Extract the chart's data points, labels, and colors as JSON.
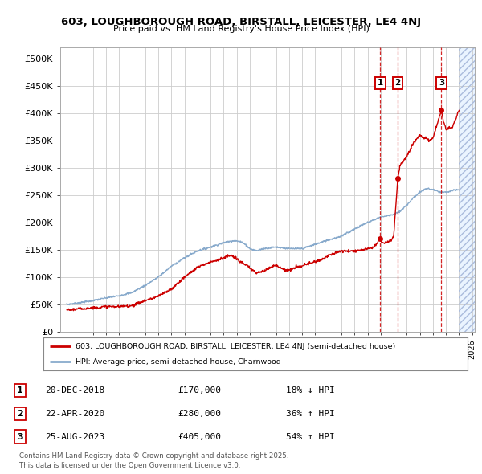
{
  "title": "603, LOUGHBOROUGH ROAD, BIRSTALL, LEICESTER, LE4 4NJ",
  "subtitle": "Price paid vs. HM Land Registry's House Price Index (HPI)",
  "ylim": [
    0,
    520000
  ],
  "yticks": [
    0,
    50000,
    100000,
    150000,
    200000,
    250000,
    300000,
    350000,
    400000,
    450000,
    500000
  ],
  "ytick_labels": [
    "£0",
    "£50K",
    "£100K",
    "£150K",
    "£200K",
    "£250K",
    "£300K",
    "£350K",
    "£400K",
    "£450K",
    "£500K"
  ],
  "xlim": [
    1994.5,
    2026.2
  ],
  "hatch_start": 2025.0,
  "sale_dates_decimal": [
    2018.97,
    2020.31,
    2023.65
  ],
  "sale_prices": [
    170000,
    280000,
    405000
  ],
  "sale_labels": [
    "1",
    "2",
    "3"
  ],
  "sale_info": [
    {
      "num": "1",
      "date": "20-DEC-2018",
      "price": "£170,000",
      "pct": "18% ↓ HPI"
    },
    {
      "num": "2",
      "date": "22-APR-2020",
      "price": "£280,000",
      "pct": "36% ↑ HPI"
    },
    {
      "num": "3",
      "date": "25-AUG-2023",
      "price": "£405,000",
      "pct": "54% ↑ HPI"
    }
  ],
  "red_color": "#cc0000",
  "blue_color": "#88aacc",
  "grid_color": "#cccccc",
  "legend_label_red": "603, LOUGHBOROUGH ROAD, BIRSTALL, LEICESTER, LE4 4NJ (semi-detached house)",
  "legend_label_blue": "HPI: Average price, semi-detached house, Charnwood",
  "footer": "Contains HM Land Registry data © Crown copyright and database right 2025.\nThis data is licensed under the Open Government Licence v3.0.",
  "xtick_years": [
    1995,
    1996,
    1997,
    1998,
    1999,
    2000,
    2001,
    2002,
    2003,
    2004,
    2005,
    2006,
    2007,
    2008,
    2009,
    2010,
    2011,
    2012,
    2013,
    2014,
    2015,
    2016,
    2017,
    2018,
    2019,
    2020,
    2021,
    2022,
    2023,
    2024,
    2025,
    2026
  ]
}
